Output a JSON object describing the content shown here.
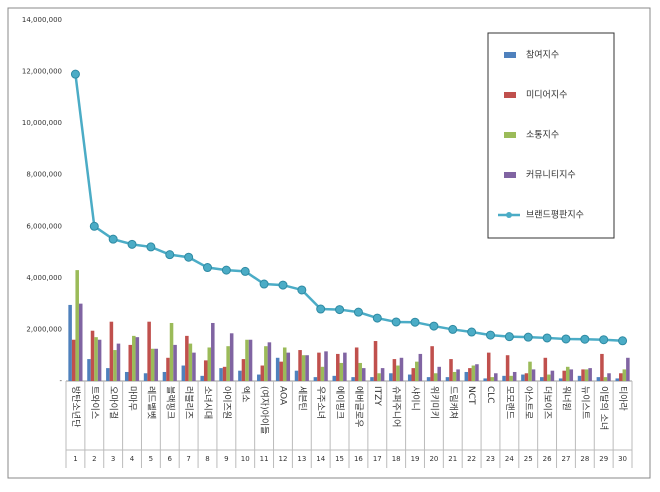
{
  "chart_data": {
    "type": "bar",
    "categories": [
      "방탄소년단",
      "트와이스",
      "오마이걸",
      "마마무",
      "레드벨벳",
      "블랙핑크",
      "러블리즈",
      "소녀시대",
      "아이즈원",
      "엑소",
      "(여자)아이들",
      "AOA",
      "세븐틴",
      "우주소녀",
      "에이핑크",
      "에버글로우",
      "ITZY",
      "슈퍼주니어",
      "샤이니",
      "위키미키",
      "드림캐쳐",
      "NCT",
      "CLC",
      "모모랜드",
      "아스트로",
      "더보이즈",
      "워너원",
      "뉴이스트",
      "이달의 소녀",
      "티아라"
    ],
    "ranks": [
      1,
      2,
      3,
      4,
      5,
      6,
      7,
      8,
      9,
      10,
      11,
      12,
      13,
      14,
      15,
      16,
      17,
      18,
      19,
      20,
      21,
      22,
      23,
      24,
      25,
      26,
      27,
      28,
      29,
      30
    ],
    "ylim": [
      0,
      14000000
    ],
    "yticks": [
      {
        "value": 0,
        "label": "-"
      },
      {
        "value": 2000000,
        "label": "2,000,000"
      },
      {
        "value": 4000000,
        "label": "4,000,000"
      },
      {
        "value": 6000000,
        "label": "6,000,000"
      },
      {
        "value": 8000000,
        "label": "8,000,000"
      },
      {
        "value": 10000000,
        "label": "10,000,000"
      },
      {
        "value": 12000000,
        "label": "12,000,000"
      },
      {
        "value": 14000000,
        "label": "14,000,000"
      }
    ],
    "series": [
      {
        "name": "참여지수",
        "type": "bar",
        "color": "#4f81bd",
        "values": [
          2950000,
          850000,
          500000,
          350000,
          300000,
          350000,
          600000,
          200000,
          500000,
          400000,
          250000,
          900000,
          400000,
          150000,
          200000,
          150000,
          150000,
          300000,
          250000,
          150000,
          150000,
          350000,
          100000,
          200000,
          250000,
          150000,
          100000,
          200000,
          150000,
          100000
        ]
      },
      {
        "name": "미디어지수",
        "type": "bar",
        "color": "#c0504d",
        "values": [
          1600000,
          1950000,
          2300000,
          1400000,
          2300000,
          900000,
          1750000,
          800000,
          550000,
          850000,
          600000,
          750000,
          1200000,
          1100000,
          1050000,
          1300000,
          1550000,
          850000,
          500000,
          1350000,
          850000,
          500000,
          1100000,
          1000000,
          300000,
          900000,
          400000,
          450000,
          1050000,
          300000
        ]
      },
      {
        "name": "소통지수",
        "type": "bar",
        "color": "#9bbb59",
        "values": [
          4300000,
          1700000,
          1200000,
          1750000,
          1250000,
          2250000,
          1450000,
          1300000,
          1350000,
          1600000,
          1350000,
          1300000,
          1000000,
          550000,
          700000,
          700000,
          300000,
          600000,
          750000,
          300000,
          350000,
          600000,
          150000,
          200000,
          750000,
          250000,
          550000,
          450000,
          150000,
          450000
        ]
      },
      {
        "name": "커뮤니티지수",
        "type": "bar",
        "color": "#8064a2",
        "values": [
          3000000,
          1600000,
          1450000,
          1700000,
          1250000,
          1400000,
          1100000,
          2250000,
          1850000,
          1600000,
          1500000,
          1100000,
          1000000,
          1150000,
          1100000,
          500000,
          500000,
          900000,
          1050000,
          550000,
          450000,
          650000,
          300000,
          350000,
          450000,
          400000,
          450000,
          500000,
          300000,
          900000
        ]
      },
      {
        "name": "브랜드평판지수",
        "type": "line",
        "color": "#4bacc6",
        "values": [
          11900000,
          6000000,
          5500000,
          5300000,
          5200000,
          4900000,
          4800000,
          4400000,
          4300000,
          4250000,
          3760000,
          3720000,
          3530000,
          2790000,
          2770000,
          2670000,
          2440000,
          2290000,
          2280000,
          2130000,
          2000000,
          1900000,
          1780000,
          1720000,
          1700000,
          1670000,
          1630000,
          1620000,
          1600000,
          1560000
        ]
      }
    ]
  }
}
